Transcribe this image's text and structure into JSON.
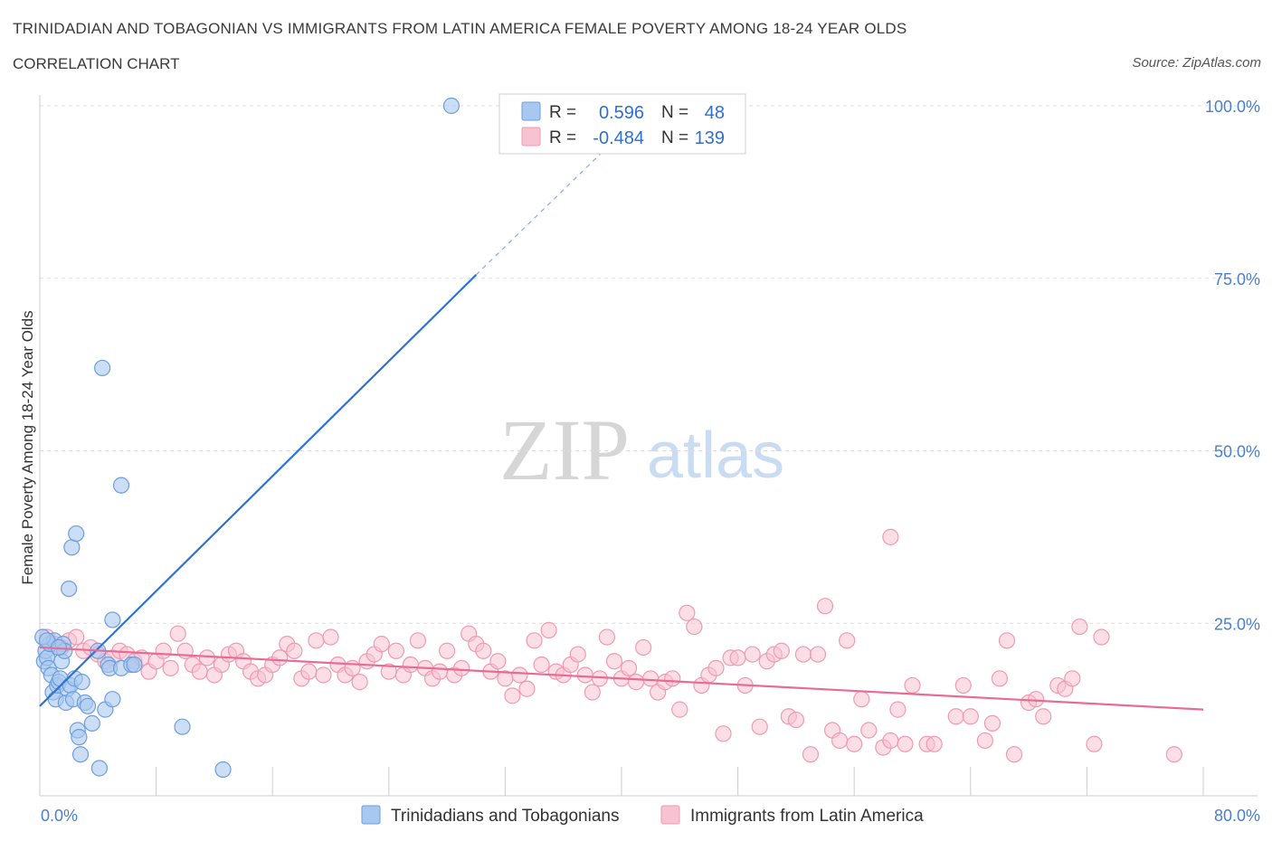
{
  "header": {
    "title": "TRINIDADIAN AND TOBAGONIAN VS IMMIGRANTS FROM LATIN AMERICA FEMALE POVERTY AMONG 18-24 YEAR OLDS",
    "subtitle": "CORRELATION CHART",
    "source": "Source: ZipAtlas.com"
  },
  "watermark": {
    "zip": "ZIP",
    "atlas": "atlas"
  },
  "colors": {
    "blue_fill": "#a9c8f0",
    "blue_stroke": "#6d9fdc",
    "blue_line": "#2f72d6",
    "pink_fill": "#f7c3d2",
    "pink_stroke": "#ef9ab3",
    "pink_line": "#e86b96",
    "grid": "#dddddd",
    "axis_text": "#4a7fd0"
  },
  "legend_box": {
    "rows": [
      {
        "r_label": "R =",
        "r_value": "0.596",
        "n_label": "N =",
        "n_value": "48"
      },
      {
        "r_label": "R =",
        "r_value": "-0.484",
        "n_label": "N =",
        "n_value": "139"
      }
    ]
  },
  "bottom_legend": {
    "items": [
      "Trinidadians and Tobagonians",
      "Immigrants from Latin America"
    ]
  },
  "chart_data": {
    "type": "scatter",
    "ylabel": "Female Poverty Among 18-24 Year Olds",
    "xlabel": "",
    "xlim": [
      0,
      80
    ],
    "ylim": [
      0,
      100
    ],
    "x_tick_labels": [
      "0.0%",
      "80.0%"
    ],
    "y_ticks": [
      25,
      50,
      75,
      100
    ],
    "y_tick_labels": [
      "25.0%",
      "50.0%",
      "75.0%",
      "100.0%"
    ],
    "grid": true,
    "series": [
      {
        "name": "Trinidadians and Tobagonians",
        "color": "blue",
        "r": 0.596,
        "n": 48,
        "trend": {
          "x0": 0,
          "y0": 13,
          "x1": 30,
          "y1": 75.5,
          "dashed_to_x": 40,
          "dashed_to_y": 96
        },
        "points": [
          [
            0.3,
            19.5
          ],
          [
            0.4,
            21
          ],
          [
            0.5,
            20
          ],
          [
            0.6,
            18.5
          ],
          [
            0.7,
            22
          ],
          [
            0.8,
            17.5
          ],
          [
            0.9,
            15
          ],
          [
            1,
            22.5
          ],
          [
            1.1,
            14
          ],
          [
            1.2,
            16
          ],
          [
            1.3,
            16.5
          ],
          [
            1.4,
            17
          ],
          [
            1.5,
            19.5
          ],
          [
            1.6,
            22
          ],
          [
            1.7,
            21
          ],
          [
            1.8,
            13.5
          ],
          [
            1.9,
            15.5
          ],
          [
            2,
            30
          ],
          [
            2.1,
            16
          ],
          [
            2.2,
            36
          ],
          [
            2.3,
            14
          ],
          [
            2.4,
            17
          ],
          [
            2.5,
            38
          ],
          [
            2.6,
            9.5
          ],
          [
            2.7,
            8.5
          ],
          [
            2.8,
            6
          ],
          [
            2.9,
            16.5
          ],
          [
            3.1,
            13.5
          ],
          [
            3.3,
            13
          ],
          [
            3.6,
            10.5
          ],
          [
            4,
            21
          ],
          [
            4.1,
            4
          ],
          [
            4.3,
            62
          ],
          [
            4.5,
            12.5
          ],
          [
            4.7,
            19
          ],
          [
            4.8,
            18.5
          ],
          [
            5,
            25.5
          ],
          [
            5,
            14
          ],
          [
            5.6,
            18.5
          ],
          [
            5.6,
            45
          ],
          [
            6.3,
            19
          ],
          [
            6.5,
            19
          ],
          [
            9.8,
            10
          ],
          [
            12.6,
            3.8
          ],
          [
            28.3,
            100
          ],
          [
            0.2,
            23
          ],
          [
            0.5,
            22.5
          ],
          [
            1.3,
            21.5
          ]
        ]
      },
      {
        "name": "Immigrants from Latin America",
        "color": "pink",
        "r": -0.484,
        "n": 139,
        "trend": {
          "x0": 0,
          "y0": 21.5,
          "x1": 80,
          "y1": 12.5
        },
        "points": [
          [
            0.5,
            23
          ],
          [
            1,
            22
          ],
          [
            1.5,
            21.5
          ],
          [
            2,
            22.5
          ],
          [
            2.5,
            23
          ],
          [
            3,
            21
          ],
          [
            3.5,
            21.5
          ],
          [
            4,
            20.5
          ],
          [
            4.5,
            19.5
          ],
          [
            5,
            20
          ],
          [
            5.5,
            21
          ],
          [
            6,
            20.5
          ],
          [
            6.5,
            19.5
          ],
          [
            7,
            20
          ],
          [
            7.5,
            18
          ],
          [
            8,
            19.5
          ],
          [
            8.5,
            21
          ],
          [
            9,
            18.5
          ],
          [
            9.5,
            23.5
          ],
          [
            10,
            21
          ],
          [
            10.5,
            19
          ],
          [
            11,
            18
          ],
          [
            11.5,
            20
          ],
          [
            12,
            17.5
          ],
          [
            12.5,
            19
          ],
          [
            13,
            20.5
          ],
          [
            13.5,
            21
          ],
          [
            14,
            19.5
          ],
          [
            14.5,
            18
          ],
          [
            15,
            17
          ],
          [
            15.5,
            17.5
          ],
          [
            16,
            19
          ],
          [
            16.5,
            20
          ],
          [
            17,
            22
          ],
          [
            17.5,
            21
          ],
          [
            18,
            17
          ],
          [
            18.5,
            18
          ],
          [
            19,
            22.5
          ],
          [
            19.5,
            17.5
          ],
          [
            20,
            23
          ],
          [
            20.5,
            19
          ],
          [
            21,
            17.5
          ],
          [
            21.5,
            18.5
          ],
          [
            22,
            16.5
          ],
          [
            22.5,
            19.5
          ],
          [
            23,
            20.5
          ],
          [
            23.5,
            22
          ],
          [
            24,
            18
          ],
          [
            24.5,
            21
          ],
          [
            25,
            17.5
          ],
          [
            25.5,
            19
          ],
          [
            26,
            22.5
          ],
          [
            26.5,
            18.5
          ],
          [
            27,
            17
          ],
          [
            27.5,
            18
          ],
          [
            28,
            21
          ],
          [
            28.5,
            17.5
          ],
          [
            29,
            18.5
          ],
          [
            29.5,
            23.5
          ],
          [
            30,
            22
          ],
          [
            30.5,
            21
          ],
          [
            31,
            18
          ],
          [
            31.5,
            19.5
          ],
          [
            32,
            17
          ],
          [
            32.5,
            14.5
          ],
          [
            33,
            17.5
          ],
          [
            33.5,
            15.5
          ],
          [
            34,
            22.5
          ],
          [
            34.5,
            19
          ],
          [
            35,
            24
          ],
          [
            35.5,
            18
          ],
          [
            36,
            17.5
          ],
          [
            36.5,
            19
          ],
          [
            37,
            20.5
          ],
          [
            37.5,
            17.5
          ],
          [
            38,
            15
          ],
          [
            38.5,
            17
          ],
          [
            39,
            23
          ],
          [
            39.5,
            19.5
          ],
          [
            40,
            17
          ],
          [
            40.5,
            18.5
          ],
          [
            41,
            16.5
          ],
          [
            41.5,
            21.5
          ],
          [
            42,
            17
          ],
          [
            42.5,
            15
          ],
          [
            43,
            16.5
          ],
          [
            43.5,
            17
          ],
          [
            44,
            12.5
          ],
          [
            44.5,
            26.5
          ],
          [
            45,
            24.5
          ],
          [
            45.5,
            16
          ],
          [
            46,
            17.5
          ],
          [
            46.5,
            18.5
          ],
          [
            47,
            9
          ],
          [
            47.5,
            20
          ],
          [
            48,
            20
          ],
          [
            48.5,
            16
          ],
          [
            49,
            20.5
          ],
          [
            49.5,
            10
          ],
          [
            50,
            19.5
          ],
          [
            50.5,
            20.5
          ],
          [
            51,
            21
          ],
          [
            51.5,
            11.5
          ],
          [
            52,
            11
          ],
          [
            52.5,
            20.5
          ],
          [
            53,
            6
          ],
          [
            53.5,
            20.5
          ],
          [
            54,
            27.5
          ],
          [
            54.5,
            9.5
          ],
          [
            55,
            8
          ],
          [
            55.5,
            22.5
          ],
          [
            56,
            7.5
          ],
          [
            56.5,
            14
          ],
          [
            57,
            9.5
          ],
          [
            58,
            7
          ],
          [
            58.5,
            8
          ],
          [
            59,
            12.5
          ],
          [
            59.5,
            7.5
          ],
          [
            60,
            16
          ],
          [
            61,
            7.5
          ],
          [
            61.5,
            7.5
          ],
          [
            63,
            11.5
          ],
          [
            63.5,
            16
          ],
          [
            64,
            11.5
          ],
          [
            65,
            8
          ],
          [
            65.5,
            10.5
          ],
          [
            66,
            17
          ],
          [
            66.5,
            22.5
          ],
          [
            67,
            6
          ],
          [
            68,
            13.5
          ],
          [
            68.5,
            14
          ],
          [
            69,
            11.5
          ],
          [
            70,
            16
          ],
          [
            70.5,
            15.5
          ],
          [
            71,
            17
          ],
          [
            71.5,
            24.5
          ],
          [
            72.5,
            7.5
          ],
          [
            73,
            23
          ],
          [
            78,
            6
          ],
          [
            58.5,
            37.5
          ]
        ]
      }
    ]
  }
}
